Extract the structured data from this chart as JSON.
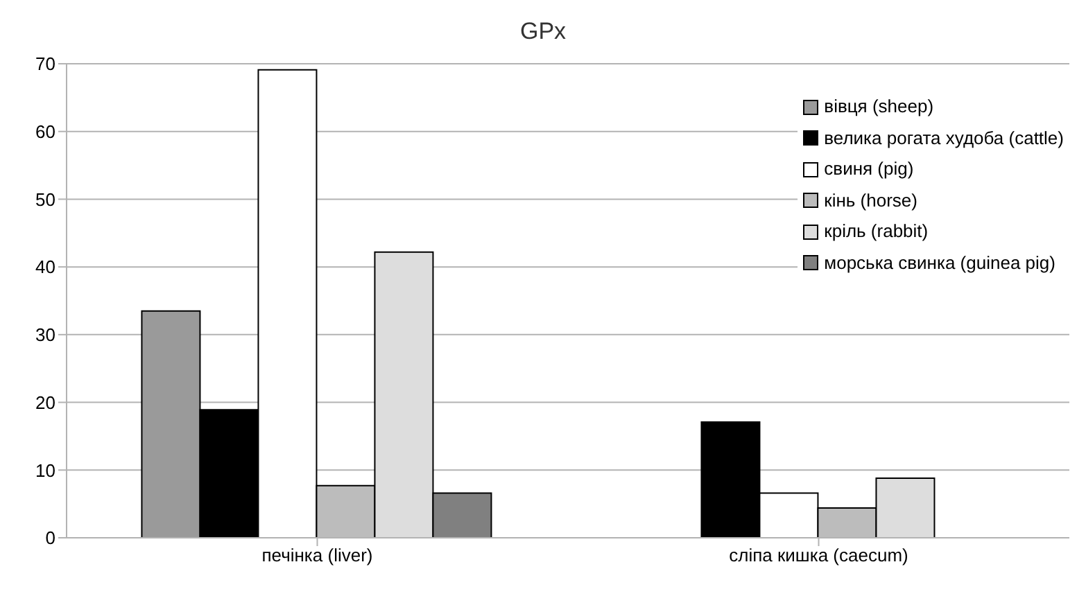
{
  "chart_data": {
    "type": "bar",
    "title": "GPx",
    "categories": [
      "печінка (liver)",
      "сліпа кишка (caecum)"
    ],
    "series": [
      {
        "name": "вівця (sheep)",
        "color": "#9a9a9a",
        "values": [
          33.5,
          null
        ]
      },
      {
        "name": "велика рогата худоба (cattle)",
        "color": "#000000",
        "values": [
          18.9,
          17.1
        ]
      },
      {
        "name": "свиня (pig)",
        "color": "#ffffff",
        "values": [
          69.1,
          6.6
        ]
      },
      {
        "name": "кінь (horse)",
        "color": "#bcbcbc",
        "values": [
          7.7,
          4.4
        ]
      },
      {
        "name": "кріль (rabbit)",
        "color": "#dddddd",
        "values": [
          42.2,
          8.8
        ]
      },
      {
        "name": "морська свинка (guinea pig)",
        "color": "#808080",
        "values": [
          6.6,
          null
        ]
      }
    ],
    "ylim": [
      0,
      70
    ],
    "yticks": [
      0,
      10,
      20,
      30,
      40,
      50,
      60,
      70
    ],
    "grid": "y",
    "legend": "top right"
  }
}
